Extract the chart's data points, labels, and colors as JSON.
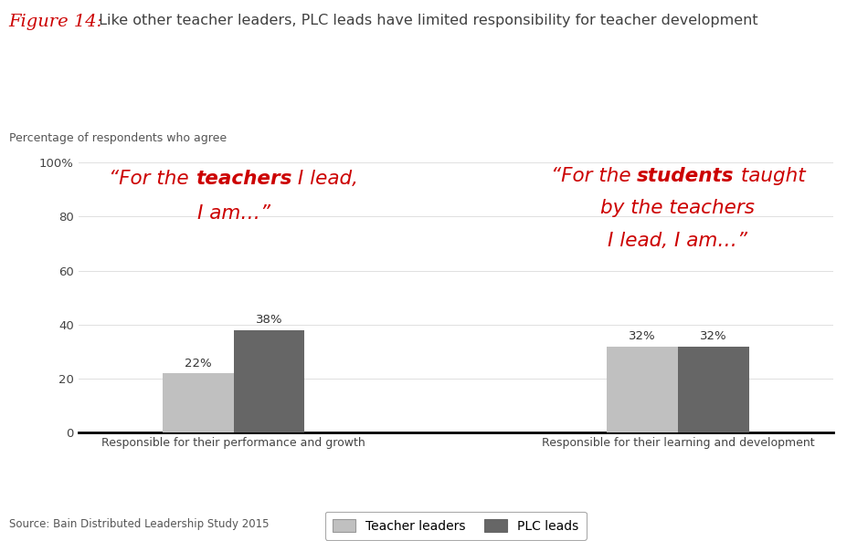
{
  "title_fig": "Figure 14:",
  "title_main": " Like other teacher leaders, PLC leads have limited responsibility for teacher development",
  "ylabel_text": "Percentage of respondents who agree",
  "source_text": "Source: Bain Distributed Leadership Study 2015",
  "categories": [
    "Responsible for their performance and growth",
    "Responsible for their learning and development"
  ],
  "teacher_leaders": [
    22,
    32
  ],
  "plc_leads": [
    38,
    32
  ],
  "bar_color_light": "#c0c0c0",
  "bar_color_dark": "#666666",
  "annotation_color": "#cc0000",
  "title_fig_color": "#cc0000",
  "title_main_color": "#404040",
  "ylim": [
    0,
    100
  ],
  "yticks": [
    0,
    20,
    40,
    60,
    80,
    100
  ],
  "ytick_labels": [
    "0",
    "20",
    "40",
    "60",
    "80",
    "100%"
  ],
  "legend_labels": [
    "Teacher leaders",
    "PLC leads"
  ],
  "background_color": "#ffffff",
  "fig_width": 9.5,
  "fig_height": 5.93
}
